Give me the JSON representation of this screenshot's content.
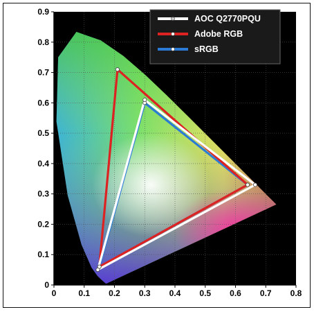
{
  "chart_data": {
    "type": "scatter",
    "title": "",
    "xlabel": "",
    "ylabel": "",
    "xlim": [
      0,
      0.8
    ],
    "ylim": [
      0,
      0.9
    ],
    "xticks": [
      "0",
      "0.1",
      "0.2",
      "0.3",
      "0.4",
      "0.5",
      "0.6",
      "0.7",
      "0.8"
    ],
    "yticks": [
      "0",
      "0.1",
      "0.2",
      "0.3",
      "0.4",
      "0.5",
      "0.6",
      "0.7",
      "0.8",
      "0.9"
    ],
    "grid": true,
    "legend_position": "top-right",
    "background": "#000000",
    "series": [
      {
        "name": "AOC Q2770PQU",
        "color": "#ffffff",
        "points": [
          [
            0.665,
            0.33
          ],
          [
            0.3,
            0.61
          ],
          [
            0.145,
            0.05
          ]
        ]
      },
      {
        "name": "Adobe RGB",
        "color": "#dd2222",
        "points": [
          [
            0.64,
            0.33
          ],
          [
            0.21,
            0.71
          ],
          [
            0.15,
            0.06
          ]
        ]
      },
      {
        "name": "sRGB",
        "color": "#2b7bd6",
        "points": [
          [
            0.64,
            0.33
          ],
          [
            0.3,
            0.6
          ],
          [
            0.15,
            0.06
          ]
        ]
      }
    ]
  }
}
